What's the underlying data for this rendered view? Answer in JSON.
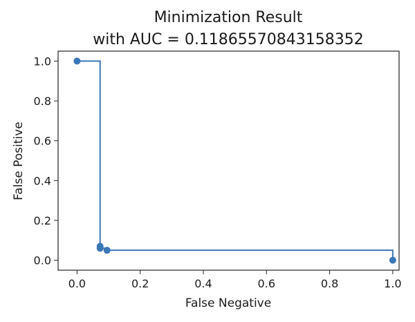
{
  "chart_data": {
    "type": "line",
    "title_line1": "Minimization Result",
    "title_line2": "with AUC = 0.11865570843158352",
    "xlabel": "False Negative",
    "ylabel": "False Positive",
    "xlim": [
      -0.06,
      1.02
    ],
    "ylim": [
      -0.05,
      1.05
    ],
    "xticks": [
      0.0,
      0.2,
      0.4,
      0.6,
      0.8,
      1.0
    ],
    "xtick_labels": [
      "0.0",
      "0.2",
      "0.4",
      "0.6",
      "0.8",
      "1.0"
    ],
    "yticks": [
      0.0,
      0.2,
      0.4,
      0.6,
      0.8,
      1.0
    ],
    "ytick_labels": [
      "0.0",
      "0.2",
      "0.4",
      "0.6",
      "0.8",
      "1.0"
    ],
    "grid": false,
    "line_style": "step-post",
    "series": [
      {
        "x": [
          0.0,
          0.073,
          0.073,
          0.095,
          1.0
        ],
        "y": [
          1.0,
          0.07,
          0.06,
          0.05,
          0.0
        ],
        "color": "#3a77b5"
      }
    ]
  }
}
